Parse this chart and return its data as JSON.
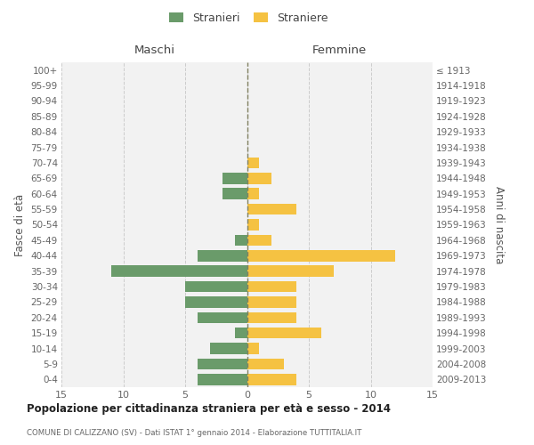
{
  "age_groups": [
    "100+",
    "95-99",
    "90-94",
    "85-89",
    "80-84",
    "75-79",
    "70-74",
    "65-69",
    "60-64",
    "55-59",
    "50-54",
    "45-49",
    "40-44",
    "35-39",
    "30-34",
    "25-29",
    "20-24",
    "15-19",
    "10-14",
    "5-9",
    "0-4"
  ],
  "birth_years": [
    "≤ 1913",
    "1914-1918",
    "1919-1923",
    "1924-1928",
    "1929-1933",
    "1934-1938",
    "1939-1943",
    "1944-1948",
    "1949-1953",
    "1954-1958",
    "1959-1963",
    "1964-1968",
    "1969-1973",
    "1974-1978",
    "1979-1983",
    "1984-1988",
    "1989-1993",
    "1994-1998",
    "1999-2003",
    "2004-2008",
    "2009-2013"
  ],
  "males": [
    0,
    0,
    0,
    0,
    0,
    0,
    0,
    2,
    2,
    0,
    0,
    1,
    4,
    11,
    5,
    5,
    4,
    1,
    3,
    4,
    4
  ],
  "females": [
    0,
    0,
    0,
    0,
    0,
    0,
    1,
    2,
    1,
    4,
    1,
    2,
    12,
    7,
    4,
    4,
    4,
    6,
    1,
    3,
    4
  ],
  "male_color": "#6a9b6a",
  "female_color": "#f5c242",
  "grid_color": "#cccccc",
  "center_line_color": "#808060",
  "title": "Popolazione per cittadinanza straniera per età e sesso - 2014",
  "subtitle": "COMUNE DI CALIZZANO (SV) - Dati ISTAT 1° gennaio 2014 - Elaborazione TUTTITALIA.IT",
  "ylabel_left": "Fasce di età",
  "ylabel_right": "Anni di nascita",
  "label_maschi": "Maschi",
  "label_femmine": "Femmine",
  "legend_stranieri": "Stranieri",
  "legend_straniere": "Straniere",
  "xlim": 15,
  "bg_color": "#ffffff",
  "plot_bg_color": "#f2f2f2"
}
